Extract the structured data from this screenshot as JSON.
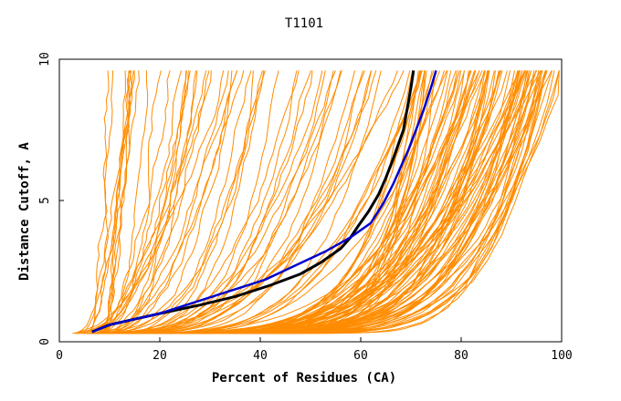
{
  "chart_data": {
    "type": "line",
    "title": "T1101",
    "xlabel": "Percent of Residues (CA)",
    "ylabel": "Distance Cutoff, A",
    "xlim": [
      0,
      100
    ],
    "ylim": [
      0,
      10
    ],
    "xticks": [
      "0",
      "20",
      "40",
      "60",
      "80",
      "100"
    ],
    "yticks": [
      "0",
      "5",
      "10"
    ],
    "grid": false,
    "legend": "none",
    "colors": {
      "background_models": "#ff8c00",
      "highlight_black": "#000000",
      "highlight_blue": "#0000cc",
      "axes": "#000000"
    },
    "background_models_count": 150,
    "series": [
      {
        "x": [
          70.5,
          70.0,
          69.5,
          69.0,
          68.5,
          67.5,
          66.5,
          65.0,
          63.5,
          61.5,
          59.5,
          58.0,
          56.0,
          52.0,
          48.0,
          42.0,
          35.0,
          28.0,
          20.0,
          15.0,
          10.0,
          6.5
        ],
        "y": [
          9.6,
          9.0,
          8.5,
          8.0,
          7.5,
          7.0,
          6.5,
          5.8,
          5.2,
          4.6,
          4.1,
          3.7,
          3.3,
          2.8,
          2.4,
          2.0,
          1.6,
          1.3,
          1.0,
          0.8,
          0.6,
          0.35
        ]
      },
      {
        "x": [
          75.0,
          74.0,
          72.5,
          71.0,
          69.5,
          68.0,
          66.5,
          64.5,
          62.0,
          58.0,
          53.0,
          47.0,
          41.0,
          34.0,
          27.0,
          20.0,
          15.0,
          10.0,
          6.5
        ],
        "y": [
          9.6,
          9.0,
          8.2,
          7.5,
          6.8,
          6.2,
          5.6,
          4.9,
          4.2,
          3.7,
          3.2,
          2.7,
          2.2,
          1.8,
          1.4,
          1.0,
          0.8,
          0.6,
          0.35
        ]
      }
    ]
  }
}
